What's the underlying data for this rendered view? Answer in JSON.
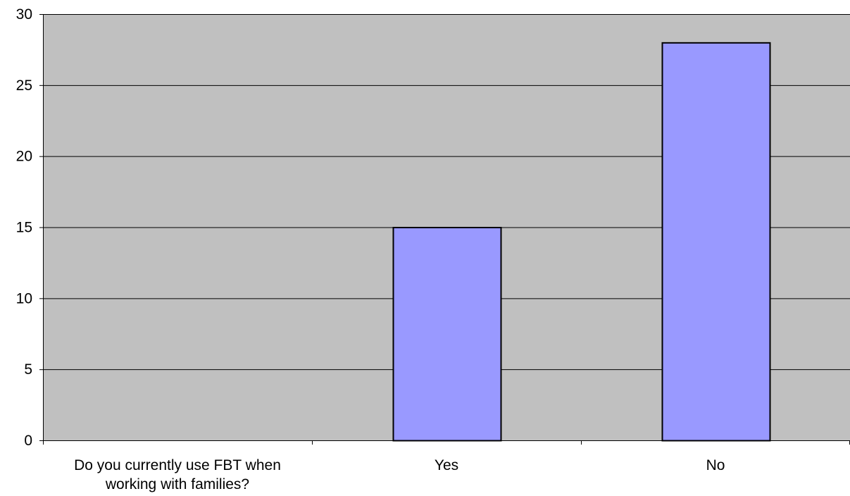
{
  "colors": {
    "plot_background": "#c0c0c0",
    "bar_fill": "#9999ff",
    "bar_stroke": "#000000",
    "gridline": "#000000",
    "page_background": "#ffffff"
  },
  "chart_data": {
    "type": "bar",
    "categories": [
      "Do you currently use FBT when working with families?",
      "Yes",
      "No"
    ],
    "category_label_lines": [
      [
        "Do you currently use FBT when",
        "working with families?"
      ],
      [
        "Yes"
      ],
      [
        "No"
      ]
    ],
    "values": [
      0,
      15,
      28
    ],
    "ylim": [
      0,
      30
    ],
    "yticks": [
      "0",
      "5",
      "10",
      "15",
      "20",
      "25",
      "30"
    ],
    "title": "",
    "xlabel": "",
    "ylabel": "",
    "grid": "horizontal",
    "legend": "none"
  }
}
